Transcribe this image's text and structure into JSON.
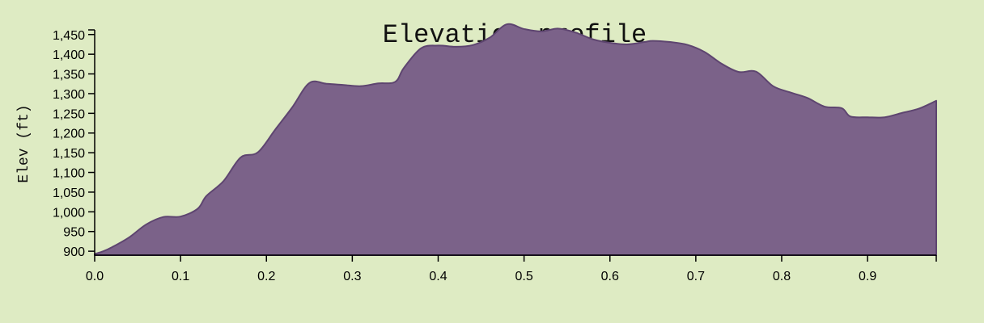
{
  "chart_data": {
    "type": "area",
    "title": "Elevation profile",
    "xlabel": "",
    "ylabel": "Elev (ft)",
    "xlim": [
      0,
      0.98
    ],
    "ylim": [
      890,
      1470
    ],
    "x_ticks": [
      "0.0",
      "0.1",
      "0.2",
      "0.3",
      "0.4",
      "0.5",
      "0.6",
      "0.7",
      "0.8",
      "0.9"
    ],
    "y_ticks": [
      "900",
      "950",
      "1,000",
      "1,050",
      "1,100",
      "1,150",
      "1,200",
      "1,250",
      "1,300",
      "1,350",
      "1,400",
      "1,450"
    ],
    "x_tick_values": [
      0,
      0.1,
      0.2,
      0.3,
      0.4,
      0.5,
      0.6,
      0.7,
      0.8,
      0.9
    ],
    "y_tick_values": [
      900,
      950,
      1000,
      1050,
      1100,
      1150,
      1200,
      1250,
      1300,
      1350,
      1400,
      1450
    ],
    "fill_color": "#7b6289",
    "line_color": "#5e4570",
    "series": [
      {
        "x": [
          0.0,
          0.01,
          0.02,
          0.04,
          0.06,
          0.08,
          0.1,
          0.12,
          0.13,
          0.15,
          0.17,
          0.19,
          0.21,
          0.23,
          0.25,
          0.27,
          0.29,
          0.31,
          0.33,
          0.35,
          0.36,
          0.38,
          0.4,
          0.42,
          0.44,
          0.46,
          0.48,
          0.5,
          0.52,
          0.54,
          0.56,
          0.58,
          0.6,
          0.62,
          0.64,
          0.65,
          0.67,
          0.69,
          0.71,
          0.73,
          0.75,
          0.77,
          0.79,
          0.81,
          0.83,
          0.85,
          0.87,
          0.88,
          0.9,
          0.92,
          0.94,
          0.96,
          0.98
        ],
        "y": [
          893,
          900,
          910,
          935,
          968,
          987,
          988,
          1008,
          1040,
          1078,
          1138,
          1151,
          1208,
          1265,
          1327,
          1325,
          1322,
          1319,
          1326,
          1330,
          1365,
          1415,
          1422,
          1419,
          1423,
          1442,
          1476,
          1464,
          1458,
          1465,
          1455,
          1438,
          1429,
          1425,
          1431,
          1434,
          1431,
          1424,
          1406,
          1376,
          1355,
          1356,
          1319,
          1303,
          1289,
          1267,
          1263,
          1242,
          1240,
          1240,
          1251,
          1262,
          1282
        ]
      }
    ]
  }
}
